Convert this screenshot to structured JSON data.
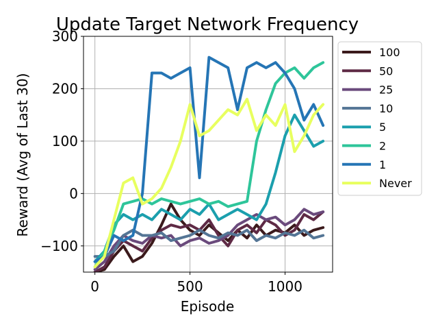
{
  "chart_data": {
    "type": "line",
    "title": "Update Target Network Frequency",
    "xlabel": "Episode",
    "ylabel": "Reward (Avg of Last 30)",
    "xlim": [
      -60,
      1250
    ],
    "ylim": [
      -150,
      300
    ],
    "xticks": [
      0,
      500,
      1000
    ],
    "yticks": [
      -100,
      0,
      100,
      200,
      300
    ],
    "xtick_labels": [
      "0",
      "500",
      "1000"
    ],
    "ytick_labels": [
      "−100",
      "0",
      "100",
      "200",
      "300"
    ],
    "grid": true,
    "legend_position": "outside-right",
    "series": [
      {
        "name": "100",
        "color": "#3b1a1c",
        "x": [
          0,
          50,
          100,
          150,
          200,
          250,
          300,
          350,
          400,
          450,
          500,
          550,
          600,
          650,
          700,
          750,
          800,
          850,
          900,
          950,
          1000,
          1050,
          1100,
          1150,
          1200
        ],
        "y": [
          -150,
          -145,
          -120,
          -100,
          -130,
          -120,
          -95,
          -60,
          -20,
          -50,
          -70,
          -80,
          -60,
          -75,
          -90,
          -70,
          -85,
          -60,
          -80,
          -70,
          -75,
          -60,
          -80,
          -70,
          -65
        ]
      },
      {
        "name": "50",
        "color": "#5e2a45",
        "x": [
          0,
          50,
          100,
          150,
          200,
          250,
          300,
          350,
          400,
          450,
          500,
          550,
          600,
          650,
          700,
          750,
          800,
          850,
          900,
          950,
          1000,
          1050,
          1100,
          1150,
          1200
        ],
        "y": [
          -150,
          -140,
          -110,
          -90,
          -100,
          -110,
          -85,
          -70,
          -60,
          -65,
          -60,
          -70,
          -50,
          -80,
          -100,
          -70,
          -60,
          -75,
          -50,
          -60,
          -80,
          -70,
          -40,
          -50,
          -35
        ]
      },
      {
        "name": "25",
        "color": "#6a4a7c",
        "x": [
          0,
          50,
          100,
          150,
          200,
          250,
          300,
          350,
          400,
          450,
          500,
          550,
          600,
          650,
          700,
          750,
          800,
          850,
          900,
          950,
          1000,
          1050,
          1100,
          1150,
          1200
        ],
        "y": [
          -145,
          -130,
          -100,
          -80,
          -90,
          -95,
          -80,
          -85,
          -80,
          -100,
          -90,
          -85,
          -95,
          -90,
          -80,
          -60,
          -50,
          -40,
          -50,
          -45,
          -60,
          -50,
          -30,
          -40,
          -35
        ]
      },
      {
        "name": "10",
        "color": "#547595",
        "x": [
          0,
          50,
          100,
          150,
          200,
          250,
          300,
          350,
          400,
          450,
          500,
          550,
          600,
          650,
          700,
          750,
          800,
          850,
          900,
          950,
          1000,
          1050,
          1100,
          1150,
          1200
        ],
        "y": [
          -120,
          -120,
          -110,
          -80,
          -70,
          -80,
          -80,
          -75,
          -90,
          -85,
          -80,
          -70,
          -80,
          -85,
          -75,
          -80,
          -70,
          -90,
          -80,
          -85,
          -75,
          -80,
          -70,
          -85,
          -80
        ]
      },
      {
        "name": "5",
        "color": "#1b9fad",
        "x": [
          0,
          50,
          100,
          150,
          200,
          250,
          300,
          350,
          400,
          450,
          500,
          550,
          600,
          650,
          700,
          750,
          800,
          850,
          900,
          950,
          1000,
          1050,
          1100,
          1150,
          1200
        ],
        "y": [
          -130,
          -110,
          -60,
          -40,
          -50,
          -40,
          -50,
          -30,
          -40,
          -50,
          -30,
          -40,
          -20,
          -50,
          -40,
          -30,
          -40,
          -50,
          -20,
          40,
          110,
          150,
          120,
          90,
          100
        ]
      },
      {
        "name": "2",
        "color": "#2ec59a",
        "x": [
          0,
          50,
          100,
          150,
          200,
          250,
          300,
          350,
          400,
          450,
          500,
          550,
          600,
          650,
          700,
          750,
          800,
          850,
          900,
          950,
          1000,
          1050,
          1100,
          1150,
          1200
        ],
        "y": [
          -140,
          -110,
          -70,
          -20,
          -15,
          -10,
          -20,
          -10,
          -15,
          -20,
          -15,
          -10,
          -20,
          -15,
          -25,
          -20,
          -15,
          100,
          160,
          210,
          230,
          240,
          220,
          240,
          250
        ]
      },
      {
        "name": "1",
        "color": "#2575b5",
        "x": [
          0,
          50,
          100,
          150,
          200,
          250,
          300,
          350,
          400,
          450,
          500,
          550,
          600,
          650,
          700,
          750,
          800,
          850,
          900,
          950,
          1000,
          1050,
          1100,
          1150,
          1200
        ],
        "y": [
          -130,
          -120,
          -80,
          -90,
          -80,
          0,
          230,
          230,
          220,
          230,
          240,
          30,
          260,
          250,
          240,
          160,
          240,
          250,
          240,
          250,
          230,
          200,
          140,
          170,
          130
        ]
      },
      {
        "name": "Never",
        "color": "#e8ff5f",
        "x": [
          0,
          50,
          100,
          150,
          200,
          250,
          300,
          350,
          400,
          450,
          500,
          550,
          600,
          650,
          700,
          750,
          800,
          850,
          900,
          950,
          1000,
          1050,
          1100,
          1150,
          1200
        ],
        "y": [
          -140,
          -120,
          -50,
          20,
          30,
          -20,
          -10,
          10,
          50,
          100,
          170,
          110,
          120,
          140,
          160,
          150,
          180,
          120,
          150,
          130,
          170,
          80,
          110,
          150,
          170
        ]
      }
    ]
  }
}
